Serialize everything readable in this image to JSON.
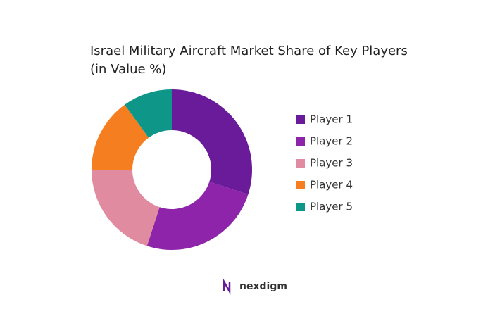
{
  "chart_data": {
    "type": "donut",
    "title": "Israel Military Aircraft Market Share of Key Players (in Value %)",
    "categories": [
      "Player 1",
      "Player 2",
      "Player 3",
      "Player 4",
      "Player 5"
    ],
    "values": [
      30,
      25,
      20,
      15,
      10
    ],
    "colors": [
      "#6a1b9a",
      "#8e24aa",
      "#e08ba0",
      "#f57f20",
      "#0e9688"
    ],
    "legend": "right"
  },
  "logo": "nexdigm"
}
